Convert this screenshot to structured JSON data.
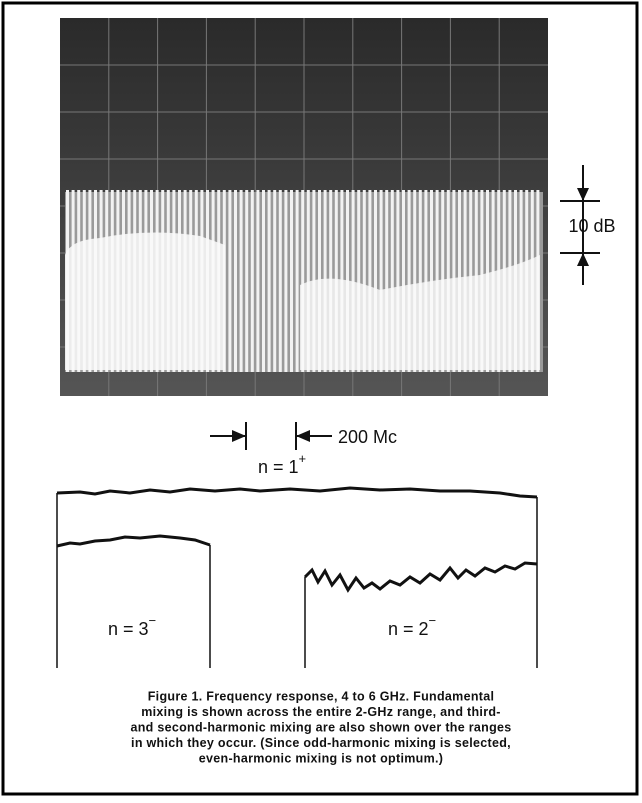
{
  "figure": {
    "scale_label": "10 dB",
    "freq_label": "200 Mc",
    "curves": [
      {
        "main": "n = 1",
        "sup": "+"
      },
      {
        "main": "n = 3",
        "sup": "−"
      },
      {
        "main": "n = 2",
        "sup": "−"
      }
    ],
    "caption": {
      "lines": [
        "Figure 1.  Frequency response, 4 to 6 GHz. Fundamental",
        "mixing is shown across the entire 2-GHz range, and third-",
        "and second-harmonic mixing are also shown over the ranges",
        "in which they occur. (Since odd-harmonic mixing is selected,",
        "even-harmonic mixing is not optimum.)"
      ]
    }
  }
}
